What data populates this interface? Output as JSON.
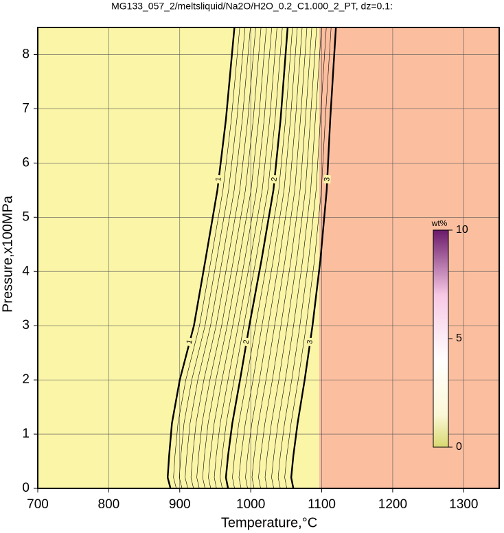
{
  "chart_data": {
    "type": "contour",
    "title": "MG133_057_2/meltsliquid/Na2O/H2O_0.2_C1.000_2_PT, dz=0.1:",
    "x_label": "Temperature,°C",
    "y_label": "Pressure,x100MPa",
    "xlim": [
      700,
      1350
    ],
    "ylim": [
      0,
      8.5
    ],
    "xticks": [
      700,
      800,
      900,
      1000,
      1100,
      1200,
      1300
    ],
    "yticks": [
      0,
      1,
      2,
      3,
      4,
      5,
      6,
      7,
      8
    ],
    "grid": true,
    "y": [
      0,
      0.2,
      0.6,
      1.2,
      2,
      3,
      4.2,
      5.5,
      6.8,
      8.5
    ],
    "series": [
      {
        "level": 1,
        "x": [
          887,
          883,
          885,
          889,
          900,
          920,
          936,
          953,
          965,
          977
        ]
      },
      {
        "level": 2,
        "x": [
          968,
          965,
          968,
          974,
          985,
          998,
          1015,
          1032,
          1042,
          1052
        ]
      },
      {
        "level": 3,
        "x": [
          1060,
          1057,
          1060,
          1066,
          1076,
          1087,
          1098,
          1107,
          1112,
          1120
        ]
      }
    ],
    "minor_levels": [
      1.1,
      1.2,
      1.3,
      1.4,
      1.5,
      1.6,
      1.7,
      1.8,
      1.9,
      2.1,
      2.2,
      2.3,
      2.4,
      2.5,
      2.6,
      2.7,
      2.8,
      2.9
    ],
    "colorbar": {
      "label": "wt%",
      "lim": [
        0,
        10
      ],
      "ticks": [
        0,
        5,
        10
      ]
    }
  }
}
